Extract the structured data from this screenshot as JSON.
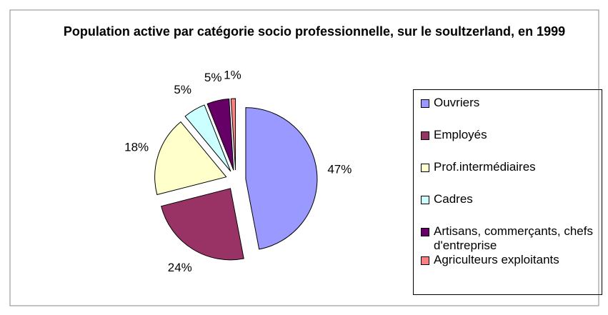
{
  "chart_data": {
    "type": "pie",
    "title": "Population active par catégorie socio professionnelle, sur le soultzerland, en 1999",
    "categories": [
      "Ouvriers",
      "Employés",
      "Prof.intermédiaires",
      "Cadres",
      "Artisans, commerçants, chefs d'entreprise",
      "Agriculteurs exploitants"
    ],
    "values": [
      47,
      24,
      18,
      5,
      5,
      1
    ],
    "value_labels": [
      "47%",
      "24%",
      "18%",
      "5%",
      "5%",
      "1%"
    ],
    "colors": [
      "#9999ff",
      "#993366",
      "#ffffcc",
      "#ccffff",
      "#660066",
      "#ff8080"
    ],
    "legend": "right"
  }
}
